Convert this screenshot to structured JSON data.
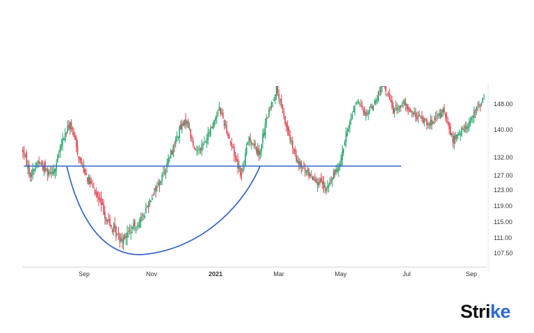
{
  "chart_data": {
    "type": "candlestick",
    "title": "",
    "xlabel": "",
    "ylabel": "",
    "ylim": [
      104,
      152
    ],
    "y_ticks": [
      "148.00",
      "140.00",
      "132.00",
      "127.00",
      "123.00",
      "119.00",
      "115.00",
      "111.00",
      "107.50"
    ],
    "x_ticks": [
      {
        "label": "Sep",
        "bold": false
      },
      {
        "label": "Nov",
        "bold": false
      },
      {
        "label": "2021",
        "bold": true
      },
      {
        "label": "Mar",
        "bold": false
      },
      {
        "label": "May",
        "bold": false
      },
      {
        "label": "Jul",
        "bold": false
      },
      {
        "label": "Sep",
        "bold": false
      }
    ],
    "colors": {
      "up": "#26a269",
      "down": "#e0404f",
      "annotation": "#3b68c9"
    },
    "price_path": [
      [
        0,
        134
      ],
      [
        6,
        127
      ],
      [
        12,
        131
      ],
      [
        20,
        128
      ],
      [
        26,
        129
      ],
      [
        32,
        137
      ],
      [
        38,
        142
      ],
      [
        46,
        131
      ],
      [
        54,
        125
      ],
      [
        62,
        120
      ],
      [
        70,
        114
      ],
      [
        78,
        111
      ],
      [
        84,
        112
      ],
      [
        90,
        114
      ],
      [
        96,
        116
      ],
      [
        104,
        122
      ],
      [
        110,
        125
      ],
      [
        118,
        132
      ],
      [
        126,
        140
      ],
      [
        132,
        143
      ],
      [
        138,
        134
      ],
      [
        146,
        136
      ],
      [
        152,
        141
      ],
      [
        158,
        147
      ],
      [
        164,
        140
      ],
      [
        170,
        133
      ],
      [
        176,
        127
      ],
      [
        182,
        138
      ],
      [
        190,
        133
      ],
      [
        196,
        143
      ],
      [
        204,
        153
      ],
      [
        212,
        141
      ],
      [
        220,
        131
      ],
      [
        228,
        128
      ],
      [
        236,
        126
      ],
      [
        244,
        123
      ],
      [
        250,
        127
      ],
      [
        256,
        132
      ],
      [
        262,
        141
      ],
      [
        268,
        149
      ],
      [
        276,
        145
      ],
      [
        284,
        149
      ],
      [
        290,
        155
      ],
      [
        298,
        146
      ],
      [
        306,
        148
      ],
      [
        314,
        145
      ],
      [
        322,
        143
      ],
      [
        330,
        142
      ],
      [
        338,
        146
      ],
      [
        346,
        137
      ],
      [
        352,
        139
      ],
      [
        360,
        143
      ],
      [
        366,
        147
      ],
      [
        371,
        150
      ]
    ],
    "annotations": {
      "resistance_level": 129.6,
      "cup_bottom": 107.5
    }
  },
  "branding": {
    "logo_prefix": "Stri",
    "logo_accent": "ke"
  }
}
